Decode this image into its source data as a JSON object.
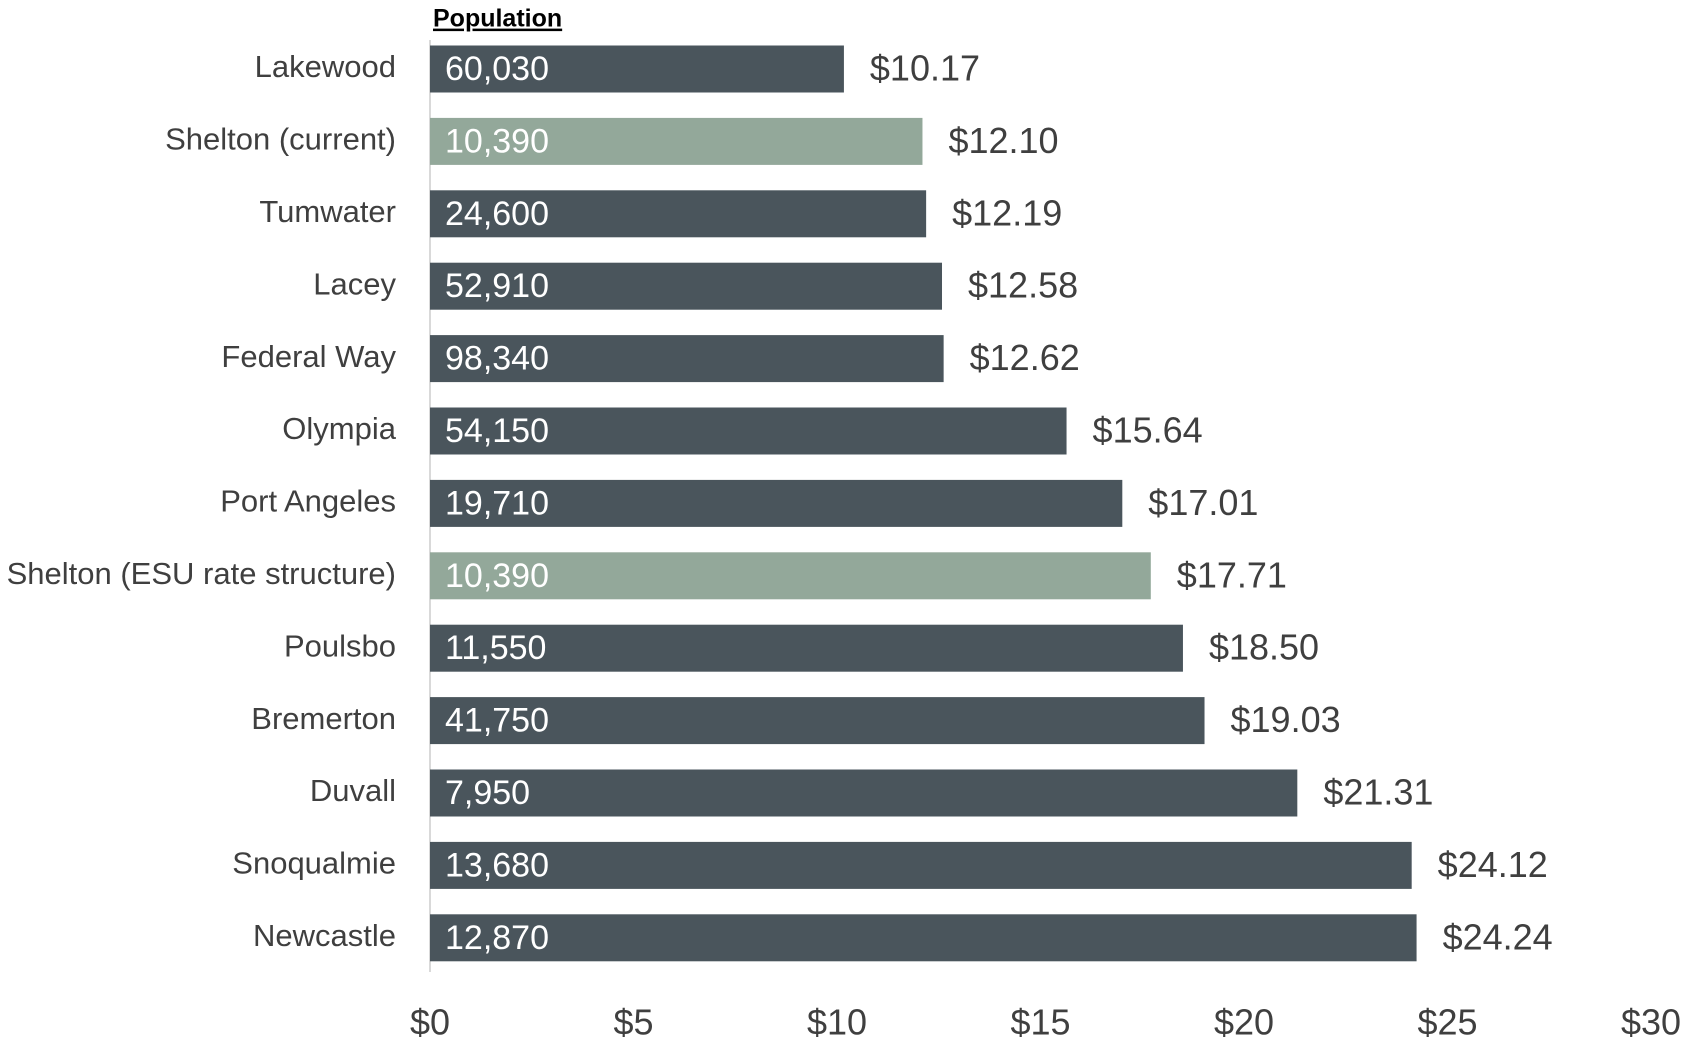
{
  "chart_data": {
    "type": "bar",
    "orientation": "horizontal",
    "categories": [
      "Lakewood",
      "Shelton (current)",
      "Tumwater",
      "Lacey",
      "Federal Way",
      "Olympia",
      "Port Angeles",
      "Shelton (ESU rate structure)",
      "Poulsbo",
      "Bremerton",
      "Duvall",
      "Snoqualmie",
      "Newcastle"
    ],
    "values": [
      10.17,
      12.1,
      12.19,
      12.58,
      12.62,
      15.64,
      17.01,
      17.71,
      18.5,
      19.03,
      21.31,
      24.12,
      24.24
    ],
    "value_labels": [
      "$10.17",
      "$12.10",
      "$12.19",
      "$12.58",
      "$12.62",
      "$15.64",
      "$17.01",
      "$17.71",
      "$18.50",
      "$19.03",
      "$21.31",
      "$24.12",
      "$24.24"
    ],
    "colors": [
      "#4a555c",
      "#93a89a",
      "#4a555c",
      "#4a555c",
      "#4a555c",
      "#4a555c",
      "#4a555c",
      "#93a89a",
      "#4a555c",
      "#4a555c",
      "#4a555c",
      "#4a555c",
      "#4a555c"
    ],
    "inner_labels_title": "Population",
    "inner_labels": [
      "60,030",
      "10,390",
      "24,600",
      "52,910",
      "98,340",
      "54,150",
      "19,710",
      "10,390",
      "11,550",
      "41,750",
      "7,950",
      "13,680",
      "12,870"
    ],
    "xlim": [
      0,
      30
    ],
    "xticks": [
      {
        "value": 0,
        "label": "$0"
      },
      {
        "value": 5,
        "label": "$5"
      },
      {
        "value": 10,
        "label": "$10"
      },
      {
        "value": 15,
        "label": "$15"
      },
      {
        "value": 20,
        "label": "$20"
      },
      {
        "value": 25,
        "label": "$25"
      },
      {
        "value": 30,
        "label": "$30"
      }
    ],
    "grid": false
  }
}
